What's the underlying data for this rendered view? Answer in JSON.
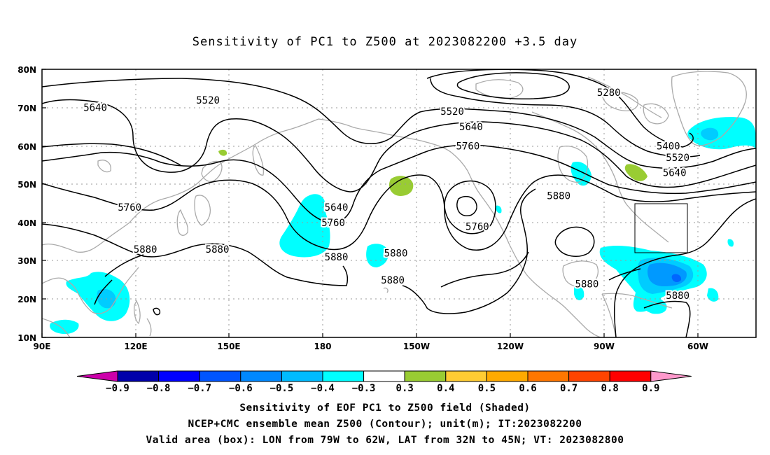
{
  "title": "Sensitivity of PC1 to Z500 at 2023082200 +3.5 day",
  "map": {
    "lat_labels": [
      "80N",
      "70N",
      "60N",
      "50N",
      "40N",
      "30N",
      "20N",
      "10N"
    ],
    "lon_labels": [
      "90E",
      "120E",
      "150E",
      "180",
      "150W",
      "120W",
      "90W",
      "60W"
    ],
    "lon_range": [
      90,
      318
    ],
    "lat_range": [
      10,
      80
    ],
    "grid": true,
    "contour_labels": [
      {
        "text": "5520",
        "lon": 143,
        "lat": 72
      },
      {
        "text": "5640",
        "lon": 107,
        "lat": 70
      },
      {
        "text": "5280",
        "lon": 271,
        "lat": 74
      },
      {
        "text": "5520",
        "lon": 221,
        "lat": 69
      },
      {
        "text": "5640",
        "lon": 227,
        "lat": 65
      },
      {
        "text": "5760",
        "lon": 226,
        "lat": 60
      },
      {
        "text": "5400",
        "lon": 290,
        "lat": 60
      },
      {
        "text": "5520",
        "lon": 293,
        "lat": 57
      },
      {
        "text": "5640",
        "lon": 292,
        "lat": 53
      },
      {
        "text": "5760",
        "lon": 118,
        "lat": 44
      },
      {
        "text": "5640",
        "lon": 184,
        "lat": 44
      },
      {
        "text": "5760",
        "lon": 183,
        "lat": 40
      },
      {
        "text": "5880",
        "lon": 255,
        "lat": 47
      },
      {
        "text": "5760",
        "lon": 229,
        "lat": 39
      },
      {
        "text": "5880",
        "lon": 123,
        "lat": 33
      },
      {
        "text": "5880",
        "lon": 146,
        "lat": 33
      },
      {
        "text": "5880",
        "lon": 184,
        "lat": 31
      },
      {
        "text": "5880",
        "lon": 203,
        "lat": 32
      },
      {
        "text": "5880",
        "lon": 202,
        "lat": 25
      },
      {
        "text": "5880",
        "lon": 264,
        "lat": 24
      },
      {
        "text": "5880",
        "lon": 293,
        "lat": 21
      }
    ],
    "valid_box": {
      "lon_min": 281,
      "lon_max": 298,
      "lat_min": 32,
      "lat_max": 45
    },
    "shade_colors": {
      "positive_03_04": "#99cc33",
      "negative_03_04": "#00ffff",
      "negative_04_05": "#00ccff",
      "negative_05_06": "#0099ff",
      "negative_06_07": "#0066ff"
    }
  },
  "colorbar": {
    "labels": [
      "−0.9",
      "−0.8",
      "−0.7",
      "−0.6",
      "−0.5",
      "−0.4",
      "−0.3",
      "0.3",
      "0.4",
      "0.5",
      "0.6",
      "0.7",
      "0.8",
      "0.9"
    ],
    "colors": [
      "#0000aa",
      "#0000ff",
      "#0055ff",
      "#0088ff",
      "#00bbff",
      "#00ffff",
      "#ffffff",
      "#99cc33",
      "#ffcc33",
      "#ffaa00",
      "#ff7700",
      "#ff4400",
      "#ff0000"
    ],
    "low_extend_color": "#cc00aa",
    "high_extend_color": "#ff99cc"
  },
  "captions": [
    "Sensitivity of EOF PC1 to Z500 field (Shaded)",
    "NCEP+CMC ensemble mean Z500 (Contour); unit(m); IT:2023082200",
    "Valid area (box): LON from 79W to 62W, LAT from 32N to 45N; VT: 2023082800"
  ]
}
